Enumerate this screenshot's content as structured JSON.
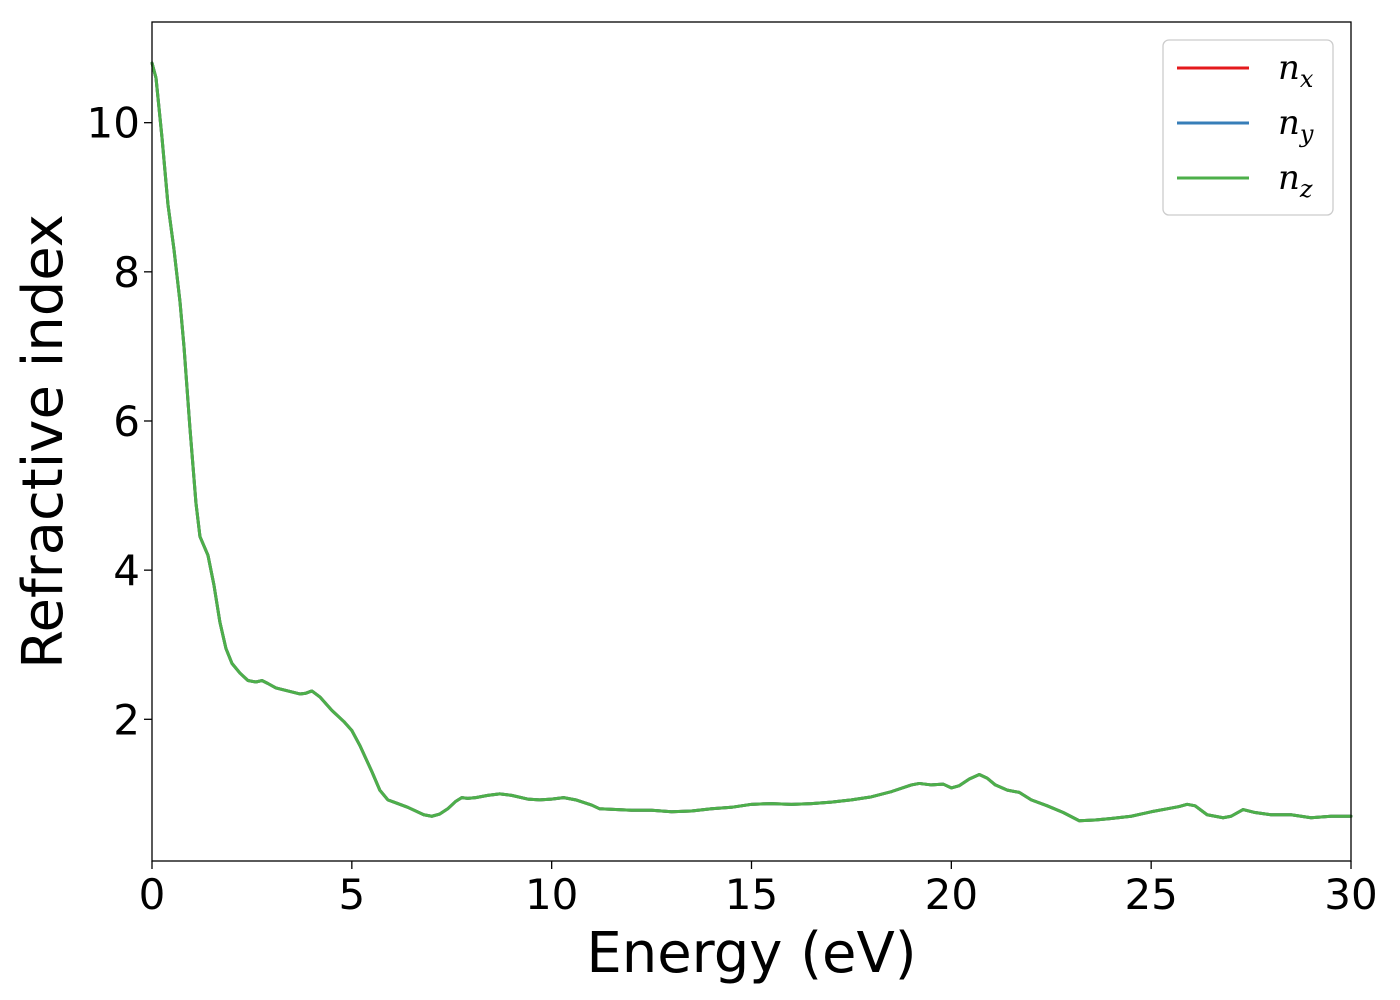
{
  "chart_data": {
    "type": "line",
    "xlabel": "Energy (eV)",
    "ylabel": "Refractive index",
    "xlim": [
      0,
      30
    ],
    "ylim": [
      0.1,
      11.35
    ],
    "xticks": [
      0,
      5,
      10,
      15,
      20,
      25,
      30
    ],
    "yticks": [
      2,
      4,
      6,
      8,
      10
    ],
    "grid": false,
    "legend_position": "top-right",
    "series": [
      {
        "name": "n_x",
        "label_base": "n",
        "label_sub": "x",
        "color": "#e41a1c",
        "x": [
          0,
          0.1,
          0.25,
          0.4,
          0.55,
          0.7,
          0.8,
          0.95,
          1.1,
          1.2,
          1.4,
          1.55,
          1.7,
          1.85,
          2.0,
          2.2,
          2.4,
          2.6,
          2.75,
          2.9,
          3.1,
          3.4,
          3.7,
          3.85,
          4.0,
          4.2,
          4.5,
          4.8,
          5.0,
          5.2,
          5.5,
          5.7,
          5.9,
          6.1,
          6.4,
          6.8,
          7.0,
          7.2,
          7.4,
          7.6,
          7.75,
          7.9,
          8.1,
          8.4,
          8.7,
          9.0,
          9.4,
          9.7,
          10.0,
          10.3,
          10.6,
          11.0,
          11.2,
          11.6,
          12.0,
          12.5,
          13.0,
          13.5,
          14.0,
          14.5,
          15.0,
          15.5,
          16.0,
          16.5,
          17.0,
          17.5,
          18.0,
          18.5,
          19.0,
          19.2,
          19.5,
          19.8,
          20.0,
          20.2,
          20.45,
          20.7,
          20.9,
          21.1,
          21.4,
          21.7,
          22.0,
          22.4,
          22.8,
          23.2,
          23.6,
          24.0,
          24.5,
          25.0,
          25.4,
          25.7,
          25.9,
          26.1,
          26.4,
          26.8,
          27.0,
          27.3,
          27.6,
          28.0,
          28.5,
          29.0,
          29.5,
          30.0
        ],
        "y": [
          10.8,
          10.6,
          9.8,
          8.9,
          8.3,
          7.6,
          7.0,
          5.9,
          4.9,
          4.45,
          4.2,
          3.8,
          3.3,
          2.95,
          2.75,
          2.62,
          2.52,
          2.5,
          2.52,
          2.48,
          2.42,
          2.38,
          2.34,
          2.35,
          2.38,
          2.3,
          2.12,
          1.97,
          1.85,
          1.65,
          1.3,
          1.05,
          0.92,
          0.88,
          0.82,
          0.72,
          0.7,
          0.73,
          0.8,
          0.9,
          0.95,
          0.94,
          0.95,
          0.98,
          1.0,
          0.98,
          0.93,
          0.92,
          0.93,
          0.95,
          0.92,
          0.85,
          0.8,
          0.79,
          0.78,
          0.78,
          0.76,
          0.77,
          0.8,
          0.82,
          0.86,
          0.87,
          0.86,
          0.87,
          0.89,
          0.92,
          0.96,
          1.03,
          1.12,
          1.14,
          1.12,
          1.13,
          1.08,
          1.11,
          1.2,
          1.26,
          1.21,
          1.12,
          1.05,
          1.02,
          0.92,
          0.84,
          0.75,
          0.64,
          0.65,
          0.67,
          0.7,
          0.76,
          0.8,
          0.83,
          0.86,
          0.84,
          0.72,
          0.68,
          0.7,
          0.79,
          0.75,
          0.72,
          0.72,
          0.68,
          0.7,
          0.7
        ]
      },
      {
        "name": "n_y",
        "label_base": "n",
        "label_sub": "y",
        "color": "#377eb8",
        "x": [
          0,
          0.1,
          0.25,
          0.4,
          0.55,
          0.7,
          0.8,
          0.95,
          1.1,
          1.2,
          1.4,
          1.55,
          1.7,
          1.85,
          2.0,
          2.2,
          2.4,
          2.6,
          2.75,
          2.9,
          3.1,
          3.4,
          3.7,
          3.85,
          4.0,
          4.2,
          4.5,
          4.8,
          5.0,
          5.2,
          5.5,
          5.7,
          5.9,
          6.1,
          6.4,
          6.8,
          7.0,
          7.2,
          7.4,
          7.6,
          7.75,
          7.9,
          8.1,
          8.4,
          8.7,
          9.0,
          9.4,
          9.7,
          10.0,
          10.3,
          10.6,
          11.0,
          11.2,
          11.6,
          12.0,
          12.5,
          13.0,
          13.5,
          14.0,
          14.5,
          15.0,
          15.5,
          16.0,
          16.5,
          17.0,
          17.5,
          18.0,
          18.5,
          19.0,
          19.2,
          19.5,
          19.8,
          20.0,
          20.2,
          20.45,
          20.7,
          20.9,
          21.1,
          21.4,
          21.7,
          22.0,
          22.4,
          22.8,
          23.2,
          23.6,
          24.0,
          24.5,
          25.0,
          25.4,
          25.7,
          25.9,
          26.1,
          26.4,
          26.8,
          27.0,
          27.3,
          27.6,
          28.0,
          28.5,
          29.0,
          29.5,
          30.0
        ],
        "y": [
          10.8,
          10.6,
          9.8,
          8.9,
          8.3,
          7.6,
          7.0,
          5.9,
          4.9,
          4.45,
          4.2,
          3.8,
          3.3,
          2.95,
          2.75,
          2.62,
          2.52,
          2.5,
          2.52,
          2.48,
          2.42,
          2.38,
          2.34,
          2.35,
          2.38,
          2.3,
          2.12,
          1.97,
          1.85,
          1.65,
          1.3,
          1.05,
          0.92,
          0.88,
          0.82,
          0.72,
          0.7,
          0.73,
          0.8,
          0.9,
          0.95,
          0.94,
          0.95,
          0.98,
          1.0,
          0.98,
          0.93,
          0.92,
          0.93,
          0.95,
          0.92,
          0.85,
          0.8,
          0.79,
          0.78,
          0.78,
          0.76,
          0.77,
          0.8,
          0.82,
          0.86,
          0.87,
          0.86,
          0.87,
          0.89,
          0.92,
          0.96,
          1.03,
          1.12,
          1.14,
          1.12,
          1.13,
          1.08,
          1.11,
          1.2,
          1.26,
          1.21,
          1.12,
          1.05,
          1.02,
          0.92,
          0.84,
          0.75,
          0.64,
          0.65,
          0.67,
          0.7,
          0.76,
          0.8,
          0.83,
          0.86,
          0.84,
          0.72,
          0.68,
          0.7,
          0.79,
          0.75,
          0.72,
          0.72,
          0.68,
          0.7,
          0.7
        ]
      },
      {
        "name": "n_z",
        "label_base": "n",
        "label_sub": "z",
        "color": "#4daf4a",
        "x": [
          0,
          0.1,
          0.25,
          0.4,
          0.55,
          0.7,
          0.8,
          0.95,
          1.1,
          1.2,
          1.4,
          1.55,
          1.7,
          1.85,
          2.0,
          2.2,
          2.4,
          2.6,
          2.75,
          2.9,
          3.1,
          3.4,
          3.7,
          3.85,
          4.0,
          4.2,
          4.5,
          4.8,
          5.0,
          5.2,
          5.5,
          5.7,
          5.9,
          6.1,
          6.4,
          6.8,
          7.0,
          7.2,
          7.4,
          7.6,
          7.75,
          7.9,
          8.1,
          8.4,
          8.7,
          9.0,
          9.4,
          9.7,
          10.0,
          10.3,
          10.6,
          11.0,
          11.2,
          11.6,
          12.0,
          12.5,
          13.0,
          13.5,
          14.0,
          14.5,
          15.0,
          15.5,
          16.0,
          16.5,
          17.0,
          17.5,
          18.0,
          18.5,
          19.0,
          19.2,
          19.5,
          19.8,
          20.0,
          20.2,
          20.45,
          20.7,
          20.9,
          21.1,
          21.4,
          21.7,
          22.0,
          22.4,
          22.8,
          23.2,
          23.6,
          24.0,
          24.5,
          25.0,
          25.4,
          25.7,
          25.9,
          26.1,
          26.4,
          26.8,
          27.0,
          27.3,
          27.6,
          28.0,
          28.5,
          29.0,
          29.5,
          30.0
        ],
        "y": [
          10.8,
          10.6,
          9.8,
          8.9,
          8.3,
          7.6,
          7.0,
          5.9,
          4.9,
          4.45,
          4.2,
          3.8,
          3.3,
          2.95,
          2.75,
          2.62,
          2.52,
          2.5,
          2.52,
          2.48,
          2.42,
          2.38,
          2.34,
          2.35,
          2.38,
          2.3,
          2.12,
          1.97,
          1.85,
          1.65,
          1.3,
          1.05,
          0.92,
          0.88,
          0.82,
          0.72,
          0.7,
          0.73,
          0.8,
          0.9,
          0.95,
          0.94,
          0.95,
          0.98,
          1.0,
          0.98,
          0.93,
          0.92,
          0.93,
          0.95,
          0.92,
          0.85,
          0.8,
          0.79,
          0.78,
          0.78,
          0.76,
          0.77,
          0.8,
          0.82,
          0.86,
          0.87,
          0.86,
          0.87,
          0.89,
          0.92,
          0.96,
          1.03,
          1.12,
          1.14,
          1.12,
          1.13,
          1.08,
          1.11,
          1.2,
          1.26,
          1.21,
          1.12,
          1.05,
          1.02,
          0.92,
          0.84,
          0.75,
          0.64,
          0.65,
          0.67,
          0.7,
          0.76,
          0.8,
          0.83,
          0.86,
          0.84,
          0.72,
          0.68,
          0.7,
          0.79,
          0.75,
          0.72,
          0.72,
          0.68,
          0.7,
          0.7
        ]
      }
    ]
  }
}
